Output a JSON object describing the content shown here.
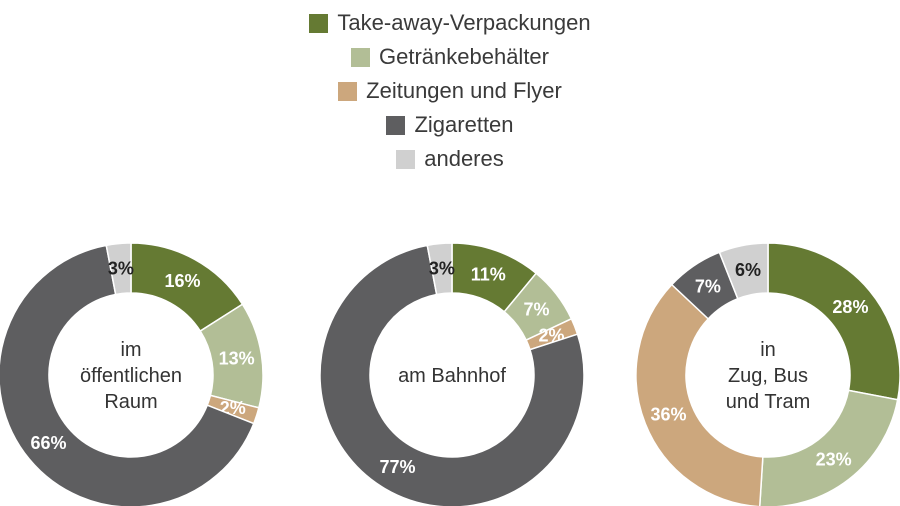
{
  "legend": [
    {
      "label": "Take-away-Verpackungen",
      "color": "#657a33"
    },
    {
      "label": "Getränkebehälter",
      "color": "#b2be96"
    },
    {
      "label": "Zeitungen und Flyer",
      "color": "#cca77d"
    },
    {
      "label": "Zigaretten",
      "color": "#5e5e60"
    },
    {
      "label": "anderes",
      "color": "#d0d0d0"
    }
  ],
  "chart_data": [
    {
      "type": "pie",
      "center_lines": [
        "im",
        "öffentlichen",
        "Raum"
      ],
      "categories": [
        "Take-away-Verpackungen",
        "Getränkebehälter",
        "Zeitungen und Flyer",
        "Zigaretten",
        "anderes"
      ],
      "values": [
        16,
        13,
        2,
        66,
        3
      ],
      "labels": [
        "16%",
        "13%",
        "2%",
        "66%",
        "3%"
      ]
    },
    {
      "type": "pie",
      "center_lines": [
        "am Bahnhof"
      ],
      "categories": [
        "Take-away-Verpackungen",
        "Getränkebehälter",
        "Zeitungen und Flyer",
        "Zigaretten",
        "anderes"
      ],
      "values": [
        11,
        7,
        2,
        77,
        3
      ],
      "labels": [
        "11%",
        "7%",
        "2%",
        "77%",
        "3%"
      ]
    },
    {
      "type": "pie",
      "center_lines": [
        "in",
        "Zug, Bus",
        "und Tram"
      ],
      "categories": [
        "Take-away-Verpackungen",
        "Getränkebehälter",
        "Zeitungen und Flyer",
        "Zigaretten",
        "anderes"
      ],
      "values": [
        28,
        23,
        36,
        7,
        6
      ],
      "labels": [
        "28%",
        "23%",
        "36%",
        "7%",
        "6%"
      ]
    }
  ]
}
